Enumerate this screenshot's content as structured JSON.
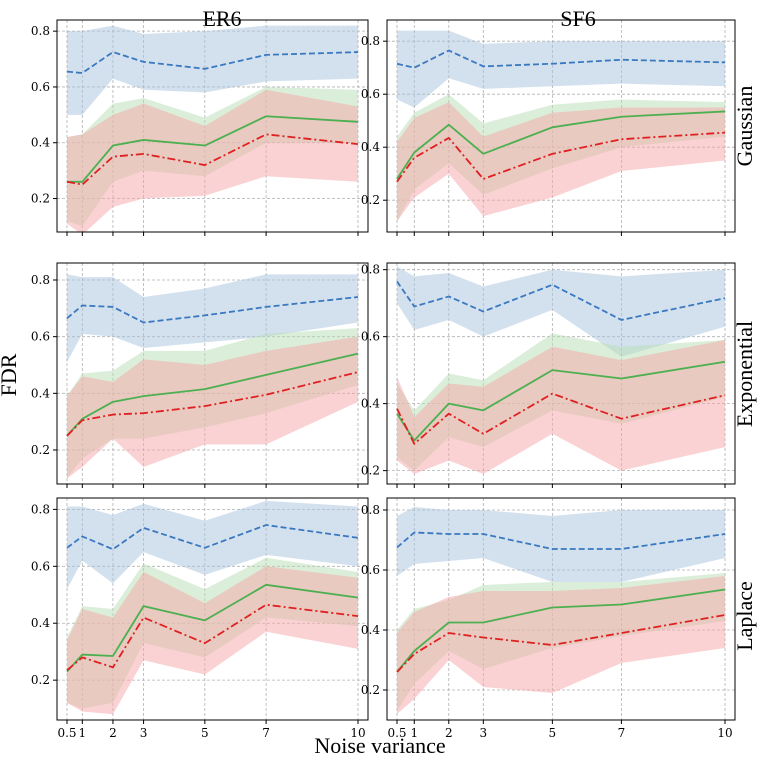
{
  "figure": {
    "col_titles": [
      "ER6",
      "SF6"
    ],
    "row_titles": [
      "Gaussian",
      "Exponential",
      "Laplace"
    ],
    "ylabel": "FDR",
    "xlabel": "Noise variance"
  },
  "colors": {
    "blue": "#3a78c0",
    "green": "#4caf50",
    "red": "#e02020",
    "blue_fill": "#a8c4e0",
    "green_fill": "#b8deb4",
    "red_fill": "#f5a6a8"
  },
  "chart_data": [
    {
      "type": "line",
      "id": "er6-gaussian",
      "col": "ER6",
      "row": "Gaussian",
      "x": [
        0.5,
        1,
        2,
        3,
        5,
        7,
        10
      ],
      "xticks": [
        0.5,
        1,
        2,
        3,
        5,
        7,
        10
      ],
      "xtick_labels": [
        "0.5",
        "1",
        "2",
        "3",
        "5",
        "7",
        "10"
      ],
      "ylim": [
        0.08,
        0.84
      ],
      "yticks": [
        0.2,
        0.4,
        0.6,
        0.8
      ],
      "ytick_labels": [
        "0.2",
        "0.4",
        "0.6",
        "0.8"
      ],
      "series": [
        {
          "name": "blue dashed",
          "color": "blue",
          "style": "dashed",
          "values": [
            0.655,
            0.65,
            0.725,
            0.69,
            0.665,
            0.715,
            0.725
          ],
          "lower": [
            0.5,
            0.5,
            0.63,
            0.59,
            0.58,
            0.62,
            0.63
          ],
          "upper": [
            0.8,
            0.8,
            0.82,
            0.79,
            0.8,
            0.82,
            0.82
          ]
        },
        {
          "name": "green solid",
          "color": "green",
          "style": "solid",
          "values": [
            0.26,
            0.26,
            0.39,
            0.41,
            0.39,
            0.495,
            0.475
          ],
          "lower": [
            0.12,
            0.1,
            0.26,
            0.3,
            0.28,
            0.4,
            0.4
          ],
          "upper": [
            0.42,
            0.43,
            0.54,
            0.56,
            0.49,
            0.6,
            0.59
          ]
        },
        {
          "name": "red dash-dot",
          "color": "red",
          "style": "dashdot",
          "values": [
            0.26,
            0.25,
            0.35,
            0.36,
            0.32,
            0.43,
            0.395
          ],
          "lower": [
            0.11,
            0.07,
            0.17,
            0.2,
            0.21,
            0.28,
            0.26
          ],
          "upper": [
            0.42,
            0.43,
            0.5,
            0.54,
            0.46,
            0.59,
            0.53
          ]
        }
      ]
    },
    {
      "type": "line",
      "id": "sf6-gaussian",
      "col": "SF6",
      "row": "Gaussian",
      "x": [
        0.5,
        1,
        2,
        3,
        5,
        7,
        10
      ],
      "xticks": [
        0.5,
        1,
        2,
        3,
        5,
        7,
        10
      ],
      "xtick_labels": [
        "0.5",
        "1",
        "2",
        "3",
        "5",
        "7",
        "10"
      ],
      "ylim": [
        0.08,
        0.88
      ],
      "yticks": [
        0.2,
        0.4,
        0.6,
        0.8
      ],
      "ytick_labels": [
        "0.2",
        "0.4",
        "0.6",
        "0.8"
      ],
      "series": [
        {
          "name": "blue dashed",
          "color": "blue",
          "style": "dashed",
          "values": [
            0.715,
            0.7,
            0.765,
            0.705,
            0.715,
            0.73,
            0.72
          ],
          "lower": [
            0.58,
            0.55,
            0.66,
            0.62,
            0.63,
            0.64,
            0.63
          ],
          "upper": [
            0.84,
            0.84,
            0.84,
            0.79,
            0.8,
            0.8,
            0.8
          ]
        },
        {
          "name": "green solid",
          "color": "green",
          "style": "solid",
          "values": [
            0.28,
            0.38,
            0.485,
            0.375,
            0.475,
            0.515,
            0.535
          ],
          "lower": [
            0.12,
            0.24,
            0.34,
            0.22,
            0.32,
            0.4,
            0.44
          ],
          "upper": [
            0.44,
            0.53,
            0.6,
            0.49,
            0.56,
            0.58,
            0.57
          ]
        },
        {
          "name": "red dash-dot",
          "color": "red",
          "style": "dashdot",
          "values": [
            0.27,
            0.36,
            0.435,
            0.28,
            0.375,
            0.43,
            0.455
          ],
          "lower": [
            0.12,
            0.21,
            0.3,
            0.14,
            0.21,
            0.31,
            0.35
          ],
          "upper": [
            0.42,
            0.51,
            0.57,
            0.44,
            0.53,
            0.55,
            0.55
          ]
        }
      ]
    },
    {
      "type": "line",
      "id": "er6-exponential",
      "col": "ER6",
      "row": "Exponential",
      "x": [
        0.5,
        1,
        2,
        3,
        5,
        7,
        10
      ],
      "xticks": [
        0.5,
        1,
        2,
        3,
        5,
        7,
        10
      ],
      "xtick_labels": [
        "0.5",
        "1",
        "2",
        "3",
        "5",
        "7",
        "10"
      ],
      "ylim": [
        0.08,
        0.86
      ],
      "yticks": [
        0.2,
        0.4,
        0.6,
        0.8
      ],
      "ytick_labels": [
        "0.2",
        "0.4",
        "0.6",
        "0.8"
      ],
      "series": [
        {
          "name": "blue dashed",
          "color": "blue",
          "style": "dashed",
          "values": [
            0.665,
            0.71,
            0.705,
            0.65,
            0.675,
            0.705,
            0.74
          ],
          "lower": [
            0.51,
            0.61,
            0.6,
            0.56,
            0.58,
            0.6,
            0.65
          ],
          "upper": [
            0.82,
            0.81,
            0.81,
            0.74,
            0.77,
            0.82,
            0.82
          ]
        },
        {
          "name": "green solid",
          "color": "green",
          "style": "solid",
          "values": [
            0.25,
            0.31,
            0.37,
            0.39,
            0.415,
            0.465,
            0.54
          ],
          "lower": [
            0.1,
            0.17,
            0.24,
            0.24,
            0.28,
            0.33,
            0.43
          ],
          "upper": [
            0.39,
            0.47,
            0.48,
            0.55,
            0.55,
            0.61,
            0.63
          ]
        },
        {
          "name": "red dash-dot",
          "color": "red",
          "style": "dashdot",
          "values": [
            0.25,
            0.305,
            0.325,
            0.33,
            0.355,
            0.395,
            0.475
          ],
          "lower": [
            0.1,
            0.14,
            0.24,
            0.14,
            0.22,
            0.22,
            0.37
          ],
          "upper": [
            0.39,
            0.46,
            0.44,
            0.52,
            0.5,
            0.55,
            0.6
          ]
        }
      ]
    },
    {
      "type": "line",
      "id": "sf6-exponential",
      "col": "SF6",
      "row": "Exponential",
      "x": [
        0.5,
        1,
        2,
        3,
        5,
        7,
        10
      ],
      "xticks": [
        0.5,
        1,
        2,
        3,
        5,
        7,
        10
      ],
      "xtick_labels": [
        "0.5",
        "1",
        "2",
        "3",
        "5",
        "7",
        "10"
      ],
      "ylim": [
        0.16,
        0.82
      ],
      "yticks": [
        0.2,
        0.4,
        0.6,
        0.8
      ],
      "ytick_labels": [
        "0.2",
        "0.4",
        "0.6",
        "0.8"
      ],
      "series": [
        {
          "name": "blue dashed",
          "color": "blue",
          "style": "dashed",
          "values": [
            0.765,
            0.69,
            0.72,
            0.675,
            0.755,
            0.65,
            0.715
          ],
          "lower": [
            0.7,
            0.62,
            0.65,
            0.6,
            0.68,
            0.54,
            0.63
          ],
          "upper": [
            0.81,
            0.78,
            0.79,
            0.75,
            0.8,
            0.78,
            0.8
          ]
        },
        {
          "name": "green solid",
          "color": "green",
          "style": "solid",
          "values": [
            0.37,
            0.29,
            0.4,
            0.38,
            0.5,
            0.475,
            0.525
          ],
          "lower": [
            0.24,
            0.2,
            0.3,
            0.27,
            0.38,
            0.34,
            0.42
          ],
          "upper": [
            0.46,
            0.38,
            0.49,
            0.47,
            0.61,
            0.57,
            0.59
          ]
        },
        {
          "name": "red dash-dot",
          "color": "red",
          "style": "dashdot",
          "values": [
            0.385,
            0.28,
            0.37,
            0.31,
            0.43,
            0.355,
            0.425
          ],
          "lower": [
            0.23,
            0.19,
            0.23,
            0.19,
            0.31,
            0.2,
            0.27
          ],
          "upper": [
            0.48,
            0.36,
            0.46,
            0.45,
            0.57,
            0.53,
            0.59
          ]
        }
      ]
    },
    {
      "type": "line",
      "id": "er6-laplace",
      "col": "ER6",
      "row": "Laplace",
      "x": [
        0.5,
        1,
        2,
        3,
        5,
        7,
        10
      ],
      "xticks": [
        0.5,
        1,
        2,
        3,
        5,
        7,
        10
      ],
      "xtick_labels": [
        "0.5",
        "1",
        "2",
        "3",
        "5",
        "7",
        "10"
      ],
      "ylim": [
        0.06,
        0.84
      ],
      "yticks": [
        0.2,
        0.4,
        0.6,
        0.8
      ],
      "ytick_labels": [
        "0.2",
        "0.4",
        "0.6",
        "0.8"
      ],
      "series": [
        {
          "name": "blue dashed",
          "color": "blue",
          "style": "dashed",
          "values": [
            0.665,
            0.705,
            0.66,
            0.735,
            0.665,
            0.745,
            0.7
          ],
          "lower": [
            0.52,
            0.62,
            0.54,
            0.65,
            0.57,
            0.64,
            0.6
          ],
          "upper": [
            0.81,
            0.81,
            0.78,
            0.82,
            0.76,
            0.83,
            0.81
          ]
        },
        {
          "name": "green solid",
          "color": "green",
          "style": "solid",
          "values": [
            0.23,
            0.29,
            0.285,
            0.46,
            0.41,
            0.535,
            0.49
          ],
          "lower": [
            0.12,
            0.1,
            0.12,
            0.33,
            0.28,
            0.42,
            0.39
          ],
          "upper": [
            0.35,
            0.46,
            0.45,
            0.61,
            0.52,
            0.63,
            0.58
          ]
        },
        {
          "name": "red dash-dot",
          "color": "red",
          "style": "dashdot",
          "values": [
            0.235,
            0.28,
            0.245,
            0.42,
            0.33,
            0.465,
            0.425
          ],
          "lower": [
            0.12,
            0.09,
            0.08,
            0.27,
            0.22,
            0.37,
            0.31
          ],
          "upper": [
            0.34,
            0.45,
            0.42,
            0.58,
            0.47,
            0.6,
            0.56
          ]
        }
      ]
    },
    {
      "type": "line",
      "id": "sf6-laplace",
      "col": "SF6",
      "row": "Laplace",
      "x": [
        0.5,
        1,
        2,
        3,
        5,
        7,
        10
      ],
      "xticks": [
        0.5,
        1,
        2,
        3,
        5,
        7,
        10
      ],
      "xtick_labels": [
        "0.5",
        "1",
        "2",
        "3",
        "5",
        "7",
        "10"
      ],
      "ylim": [
        0.1,
        0.84
      ],
      "yticks": [
        0.2,
        0.4,
        0.6,
        0.8
      ],
      "ytick_labels": [
        "0.2",
        "0.4",
        "0.6",
        "0.8"
      ],
      "series": [
        {
          "name": "blue dashed",
          "color": "blue",
          "style": "dashed",
          "values": [
            0.675,
            0.725,
            0.72,
            0.72,
            0.67,
            0.67,
            0.72
          ],
          "lower": [
            0.58,
            0.62,
            0.63,
            0.64,
            0.56,
            0.56,
            0.64
          ],
          "upper": [
            0.78,
            0.81,
            0.8,
            0.8,
            0.78,
            0.8,
            0.8
          ]
        },
        {
          "name": "green solid",
          "color": "green",
          "style": "solid",
          "values": [
            0.26,
            0.33,
            0.425,
            0.425,
            0.475,
            0.485,
            0.535
          ],
          "lower": [
            0.13,
            0.22,
            0.33,
            0.27,
            0.34,
            0.38,
            0.43
          ],
          "upper": [
            0.4,
            0.47,
            0.5,
            0.55,
            0.56,
            0.56,
            0.59
          ]
        },
        {
          "name": "red dash-dot",
          "color": "red",
          "style": "dashdot",
          "values": [
            0.26,
            0.32,
            0.39,
            0.375,
            0.35,
            0.39,
            0.45
          ],
          "lower": [
            0.12,
            0.17,
            0.3,
            0.21,
            0.19,
            0.29,
            0.34
          ],
          "upper": [
            0.39,
            0.46,
            0.51,
            0.53,
            0.53,
            0.54,
            0.58
          ]
        }
      ]
    }
  ]
}
